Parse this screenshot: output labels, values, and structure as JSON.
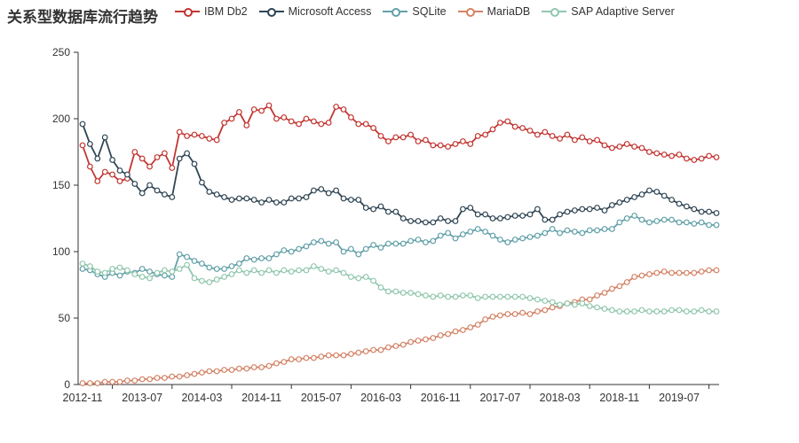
{
  "title": "关系型数据库流行趋势",
  "legend": {
    "items": [
      {
        "label": "IBM Db2",
        "color": "#c23531"
      },
      {
        "label": "Microsoft Access",
        "color": "#2f4554"
      },
      {
        "label": "SQLite",
        "color": "#61a0a8"
      },
      {
        "label": "MariaDB",
        "color": "#d48265"
      },
      {
        "label": "SAP Adaptive Server",
        "color": "#91c7ae"
      }
    ]
  },
  "axes": {
    "y_ticks": [
      0,
      50,
      100,
      150,
      200,
      250
    ],
    "x_shown_labels": [
      "2012-11",
      "2013-07",
      "2014-03",
      "2014-11",
      "2015-07",
      "2016-03",
      "2016-11",
      "2017-07",
      "2018-03",
      "2018-11",
      "2019-07"
    ],
    "x_label_interval": 8,
    "axis_color": "#333333",
    "label_color": "#333333"
  },
  "chart_data": {
    "type": "line",
    "title": "关系型数据库流行趋势",
    "xlabel": "",
    "ylabel": "",
    "ylim": [
      0,
      250
    ],
    "grid": false,
    "legend_position": "top",
    "marker": "hollow-circle",
    "x": [
      "2012-11",
      "2012-12",
      "2013-01",
      "2013-02",
      "2013-03",
      "2013-04",
      "2013-05",
      "2013-06",
      "2013-07",
      "2013-08",
      "2013-09",
      "2013-10",
      "2013-11",
      "2013-12",
      "2014-01",
      "2014-02",
      "2014-03",
      "2014-04",
      "2014-05",
      "2014-06",
      "2014-07",
      "2014-08",
      "2014-09",
      "2014-10",
      "2014-11",
      "2014-12",
      "2015-01",
      "2015-02",
      "2015-03",
      "2015-04",
      "2015-05",
      "2015-06",
      "2015-07",
      "2015-08",
      "2015-09",
      "2015-10",
      "2015-11",
      "2015-12",
      "2016-01",
      "2016-02",
      "2016-03",
      "2016-04",
      "2016-05",
      "2016-06",
      "2016-07",
      "2016-08",
      "2016-09",
      "2016-10",
      "2016-11",
      "2016-12",
      "2017-01",
      "2017-02",
      "2017-03",
      "2017-04",
      "2017-05",
      "2017-06",
      "2017-07",
      "2017-08",
      "2017-09",
      "2017-10",
      "2017-11",
      "2017-12",
      "2018-01",
      "2018-02",
      "2018-03",
      "2018-04",
      "2018-05",
      "2018-06",
      "2018-07",
      "2018-08",
      "2018-09",
      "2018-10",
      "2018-11",
      "2018-12",
      "2019-01",
      "2019-02",
      "2019-03",
      "2019-04",
      "2019-05",
      "2019-06",
      "2019-07",
      "2019-08",
      "2019-09",
      "2019-10",
      "2019-11",
      "2019-12"
    ],
    "series": [
      {
        "name": "IBM Db2",
        "color": "#c23531",
        "values": [
          180,
          164,
          153,
          160,
          158,
          153,
          155,
          175,
          170,
          164,
          171,
          174,
          163,
          190,
          187,
          188,
          187,
          185,
          184,
          197,
          200,
          205,
          195,
          207,
          206,
          210,
          200,
          201,
          198,
          196,
          200,
          198,
          196,
          197,
          209,
          207,
          201,
          196,
          196,
          193,
          187,
          183,
          186,
          186,
          188,
          183,
          184,
          180,
          180,
          179,
          181,
          183,
          181,
          187,
          188,
          192,
          197,
          198,
          194,
          193,
          191,
          188,
          190,
          187,
          185,
          188,
          184,
          186,
          183,
          184,
          180,
          178,
          179,
          181,
          179,
          178,
          175,
          174,
          173,
          172,
          173,
          170,
          169,
          170,
          172,
          171
        ]
      },
      {
        "name": "Microsoft Access",
        "color": "#2f4554",
        "values": [
          196,
          181,
          170,
          186,
          169,
          161,
          158,
          151,
          144,
          150,
          146,
          143,
          141,
          170,
          174,
          166,
          152,
          145,
          143,
          141,
          139,
          140,
          140,
          139,
          137,
          139,
          137,
          137,
          140,
          140,
          141,
          146,
          147,
          144,
          146,
          140,
          139,
          139,
          133,
          132,
          134,
          130,
          130,
          125,
          123,
          123,
          122,
          122,
          125,
          123,
          123,
          132,
          133,
          128,
          128,
          125,
          125,
          126,
          127,
          127,
          128,
          132,
          124,
          124,
          128,
          130,
          131,
          132,
          132,
          133,
          131,
          135,
          137,
          139,
          141,
          143,
          146,
          145,
          142,
          139,
          136,
          134,
          132,
          130,
          130,
          129
        ]
      },
      {
        "name": "SQLite",
        "color": "#61a0a8",
        "values": [
          87,
          86,
          83,
          81,
          84,
          82,
          85,
          84,
          87,
          85,
          83,
          82,
          81,
          98,
          96,
          93,
          91,
          88,
          87,
          87,
          89,
          91,
          95,
          94,
          95,
          95,
          98,
          101,
          100,
          102,
          104,
          107,
          108,
          106,
          107,
          100,
          102,
          98,
          102,
          105,
          103,
          106,
          106,
          106,
          108,
          109,
          107,
          108,
          112,
          114,
          110,
          113,
          115,
          117,
          115,
          112,
          109,
          107,
          109,
          110,
          111,
          112,
          114,
          117,
          114,
          116,
          115,
          114,
          116,
          116,
          117,
          117,
          122,
          125,
          127,
          124,
          122,
          123,
          124,
          124,
          122,
          122,
          121,
          122,
          120,
          120
        ]
      },
      {
        "name": "MariaDB",
        "color": "#d48265",
        "values": [
          1,
          1,
          1,
          2,
          2,
          2,
          3,
          3,
          4,
          4,
          5,
          5,
          6,
          6,
          7,
          8,
          9,
          10,
          10,
          11,
          11,
          12,
          12,
          13,
          13,
          14,
          16,
          17,
          19,
          19,
          20,
          20,
          21,
          22,
          22,
          22,
          23,
          24,
          25,
          26,
          26,
          28,
          29,
          30,
          32,
          33,
          34,
          35,
          37,
          38,
          40,
          41,
          43,
          45,
          49,
          51,
          52,
          53,
          53,
          54,
          53,
          55,
          56,
          58,
          59,
          61,
          62,
          64,
          64,
          67,
          69,
          72,
          74,
          77,
          81,
          82,
          83,
          84,
          85,
          84,
          84,
          84,
          84,
          85,
          86,
          86
        ]
      },
      {
        "name": "SAP Adaptive Server",
        "color": "#91c7ae",
        "values": [
          91,
          89,
          85,
          84,
          87,
          88,
          86,
          83,
          81,
          80,
          84,
          86,
          85,
          87,
          90,
          80,
          78,
          77,
          79,
          81,
          83,
          86,
          84,
          86,
          84,
          86,
          84,
          86,
          85,
          86,
          86,
          89,
          87,
          85,
          86,
          84,
          81,
          80,
          81,
          78,
          73,
          70,
          70,
          69,
          69,
          68,
          67,
          66,
          67,
          66,
          66,
          67,
          67,
          65,
          66,
          66,
          66,
          66,
          66,
          66,
          65,
          64,
          63,
          62,
          60,
          61,
          60,
          61,
          59,
          58,
          57,
          56,
          55,
          55,
          55,
          56,
          55,
          55,
          55,
          56,
          56,
          55,
          55,
          56,
          55,
          55
        ]
      }
    ]
  }
}
